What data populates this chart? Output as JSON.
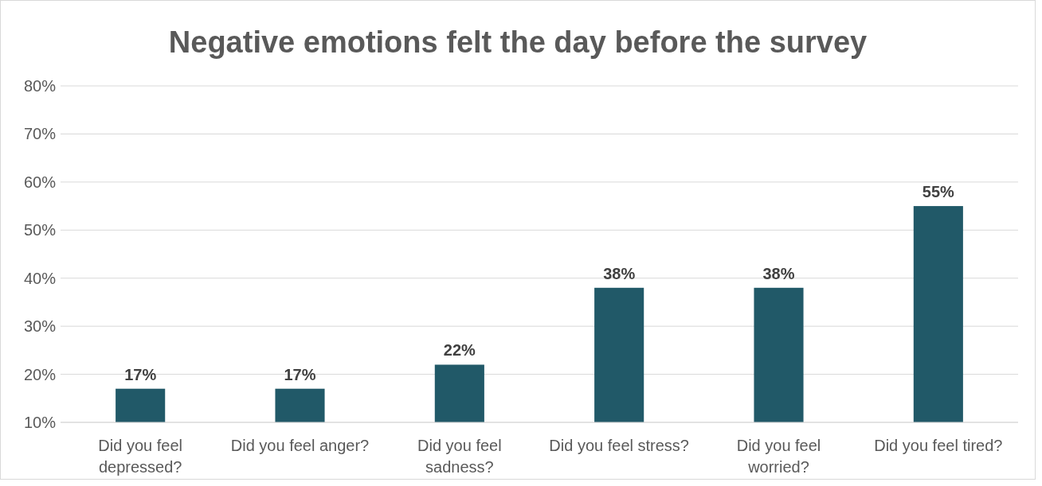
{
  "chart_data": {
    "type": "bar",
    "title": "Negative emotions felt the day before the survey",
    "categories": [
      "Did you feel depressed?",
      "Did you feel anger?",
      "Did you feel sadness?",
      "Did you feel stress?",
      "Did you feel worried?",
      "Did you feel tired?"
    ],
    "values": [
      17,
      17,
      22,
      38,
      38,
      55
    ],
    "color": "#215968",
    "value_labels": [
      "17%",
      "17%",
      "22%",
      "38%",
      "38%",
      "55%"
    ],
    "ylim": [
      10,
      80
    ],
    "yticks": [
      {
        "value": 10,
        "label": "10%"
      },
      {
        "value": 20,
        "label": "20%"
      },
      {
        "value": 30,
        "label": "30%"
      },
      {
        "value": 40,
        "label": "40%"
      },
      {
        "value": 50,
        "label": "50%"
      },
      {
        "value": 60,
        "label": "60%"
      },
      {
        "value": 70,
        "label": "70%"
      },
      {
        "value": 80,
        "label": "80%"
      }
    ],
    "grid": true
  }
}
